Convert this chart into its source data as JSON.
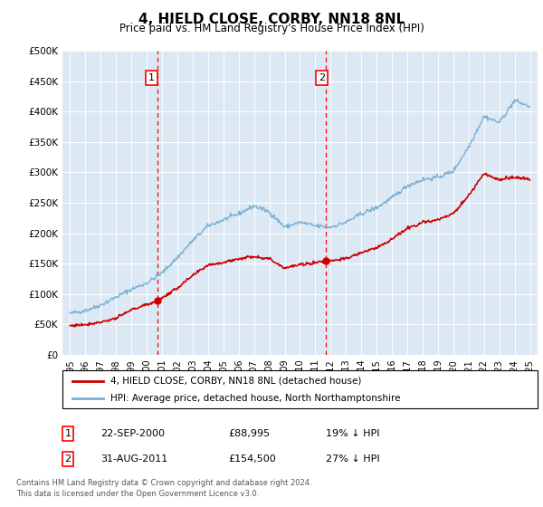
{
  "title": "4, HIELD CLOSE, CORBY, NN18 8NL",
  "subtitle": "Price paid vs. HM Land Registry's House Price Index (HPI)",
  "legend_line1": "4, HIELD CLOSE, CORBY, NN18 8NL (detached house)",
  "legend_line2": "HPI: Average price, detached house, North Northamptonshire",
  "footnote1": "Contains HM Land Registry data © Crown copyright and database right 2024.",
  "footnote2": "This data is licensed under the Open Government Licence v3.0.",
  "price_paid_color": "#cc0000",
  "hpi_color": "#7bafd4",
  "background_color": "#dce9f5",
  "ylim": [
    0,
    500000
  ],
  "yticks": [
    0,
    50000,
    100000,
    150000,
    200000,
    250000,
    300000,
    350000,
    400000,
    450000,
    500000
  ],
  "ytick_labels": [
    "£0",
    "£50K",
    "£100K",
    "£150K",
    "£200K",
    "£250K",
    "£300K",
    "£350K",
    "£400K",
    "£450K",
    "£500K"
  ],
  "point1_x": 2000.72,
  "point1_y": 88995,
  "point1_label": "1",
  "point1_date": "22-SEP-2000",
  "point1_price": "£88,995",
  "point1_hpi": "19% ↓ HPI",
  "point2_x": 2011.66,
  "point2_y": 154500,
  "point2_label": "2",
  "point2_date": "31-AUG-2011",
  "point2_price": "£154,500",
  "point2_hpi": "27% ↓ HPI",
  "xmin": 1994.5,
  "xmax": 2025.5,
  "years_hpi": [
    1995,
    1996,
    1997,
    1998,
    1999,
    2000,
    2001,
    2002,
    2003,
    2004,
    2005,
    2006,
    2007,
    2008,
    2009,
    2010,
    2011,
    2012,
    2013,
    2014,
    2015,
    2016,
    2017,
    2018,
    2019,
    2020,
    2021,
    2022,
    2023,
    2024,
    2025
  ],
  "hpi_values": [
    68000,
    73000,
    82000,
    95000,
    108000,
    118000,
    135000,
    160000,
    188000,
    212000,
    222000,
    232000,
    245000,
    235000,
    210000,
    218000,
    212000,
    210000,
    218000,
    232000,
    242000,
    258000,
    278000,
    288000,
    292000,
    302000,
    342000,
    392000,
    382000,
    418000,
    408000
  ],
  "years_pp": [
    1995,
    1996,
    1997,
    1998,
    1999,
    2000.72,
    2002,
    2003,
    2004,
    2005,
    2006,
    2007,
    2008,
    2009,
    2010,
    2011.66,
    2013,
    2014,
    2015,
    2016,
    2017,
    2018,
    2019,
    2020,
    2021,
    2022,
    2023,
    2024,
    2025
  ],
  "pp_values": [
    48000,
    50000,
    54000,
    60000,
    74000,
    88995,
    110000,
    130000,
    148000,
    152000,
    158000,
    162000,
    158000,
    143000,
    148000,
    154500,
    158000,
    168000,
    176000,
    190000,
    208000,
    218000,
    222000,
    232000,
    262000,
    298000,
    288000,
    292000,
    288000
  ]
}
